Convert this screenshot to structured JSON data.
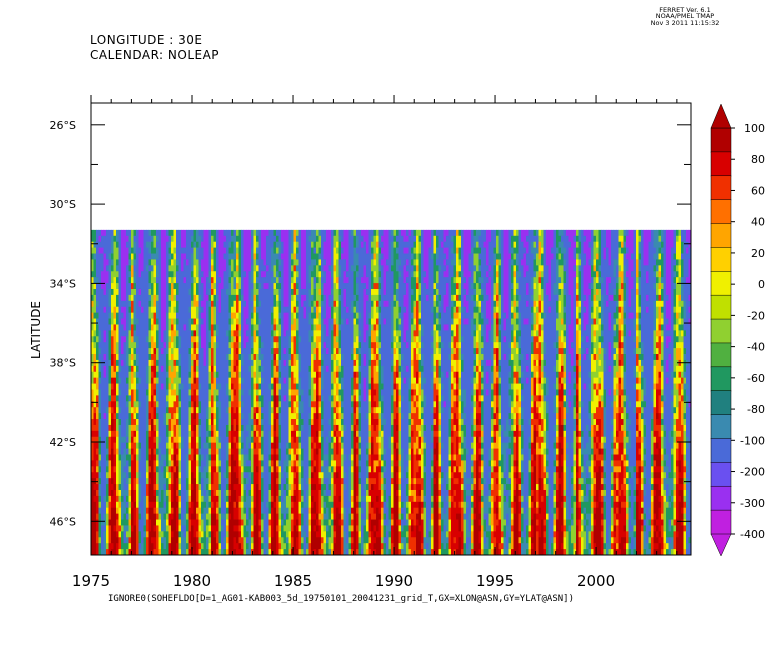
{
  "header": {
    "longitude": "LONGITUDE : 30E",
    "calendar": "CALENDAR: NOLEAP"
  },
  "stamp": {
    "line1": "FERRET Ver. 6.1",
    "line2": "NOAA/PMEL TMAP",
    "line3": "Nov  3 2011 11:15:32"
  },
  "chart_data": {
    "type": "heatmap",
    "title": "",
    "xlabel": "IGNORE0(SOHEFLDO[D=1_AG01-KAB003_5d_19750101_20041231_grid_T,GX=XLON@ASN,GY=YLAT@ASN])",
    "ylabel": "LATITUDE",
    "x_ticks": [
      1975,
      1980,
      1985,
      1990,
      1995,
      2000
    ],
    "x_tick_labels": [
      "1975",
      "1980",
      "1985",
      "1990",
      "1995",
      "2000"
    ],
    "xlim": [
      1975,
      2004.7
    ],
    "y_ticks": [
      -26,
      -30,
      -34,
      -38,
      -42,
      -46
    ],
    "y_tick_labels": [
      "26°S",
      "30°S",
      "34°S",
      "38°S",
      "42°S",
      "46°S"
    ],
    "ylim": [
      -47.7,
      -24.9
    ],
    "data_lat_range": [
      -47.7,
      -31.3
    ],
    "missing_above_lat": -31.3,
    "colorbar": {
      "labels": [
        "100",
        "80",
        "60",
        "40",
        "20",
        "0",
        "-20",
        "-40",
        "-60",
        "-80",
        "-100",
        "-200",
        "-300",
        "-400"
      ],
      "colors": [
        "#b00000",
        "#d80000",
        "#f03000",
        "#ff7000",
        "#ffa500",
        "#ffd000",
        "#f0f000",
        "#c0e000",
        "#90d030",
        "#50b040",
        "#209860",
        "#20807f",
        "#3a8ab0",
        "#4a6ad8",
        "#6a50f0",
        "#9a30f0",
        "#c020e0"
      ],
      "extend": "both"
    },
    "pattern": "seasonal cycle: roughly one positive (red) streak per year, negative (blue/purple) values dominate the northern part of the data region"
  }
}
